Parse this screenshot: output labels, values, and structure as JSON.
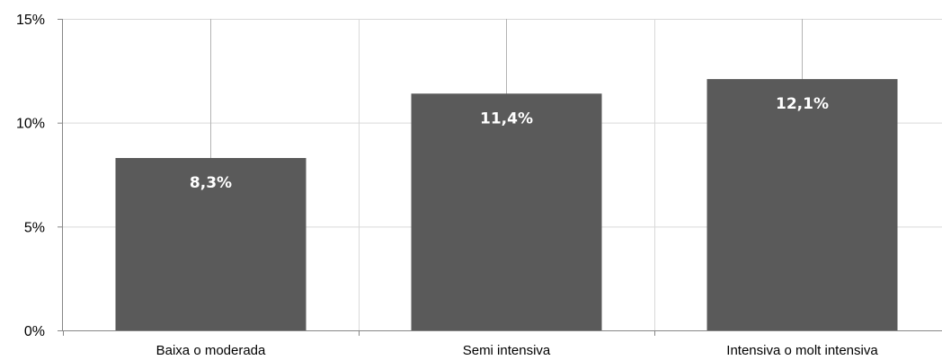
{
  "chart_data": {
    "type": "bar",
    "categories": [
      "Baixa o moderada",
      "Semi intensiva",
      "Intensiva o molt intensiva"
    ],
    "values": [
      8.3,
      11.4,
      12.1
    ],
    "data_labels": [
      "8,3%",
      "11,4%",
      "12,1%"
    ],
    "title": "",
    "xlabel": "",
    "ylabel": "",
    "ylim": [
      0,
      15
    ],
    "yticks": [
      0,
      5,
      10,
      15
    ],
    "ytick_labels": [
      "0%",
      "5%",
      "10%",
      "15%"
    ],
    "grid": true,
    "legend": false,
    "colors": {
      "bar": "#5a5a5a",
      "gridline": "#d9d9d9",
      "axis": "#868686",
      "data_label": "#ffffff"
    }
  }
}
